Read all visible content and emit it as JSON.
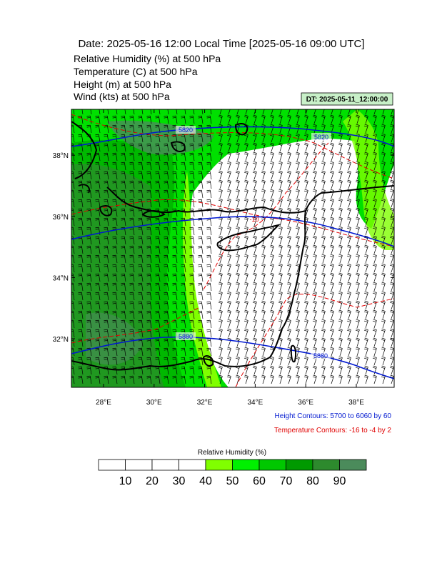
{
  "header": {
    "title": "Date: 2025-05-16  12:00 Local Time [2025-05-16  09:00 UTC]",
    "lines": [
      "Relative Humidity   (%)     at   500 hPa",
      "Temperature   (C)     at   500 hPa",
      "Height   (m)     at   500 hPa",
      "Wind   (kts)     at   500 hPa"
    ],
    "dt": "DT: 2025-05-11_12:00:00"
  },
  "map": {
    "lat_ticks": [
      {
        "value": 32,
        "label": "32°N"
      },
      {
        "value": 34,
        "label": "34°N"
      },
      {
        "value": 36,
        "label": "36°N"
      },
      {
        "value": 38,
        "label": "38°N"
      }
    ],
    "lon_ticks": [
      {
        "value": 28,
        "label": "28°E"
      },
      {
        "value": 30,
        "label": "30°E"
      },
      {
        "value": 32,
        "label": "32°E"
      },
      {
        "value": 34,
        "label": "34°E"
      },
      {
        "value": 36,
        "label": "36°E"
      },
      {
        "value": 38,
        "label": "38°E"
      }
    ],
    "contour_labels": [
      "5820",
      "5820",
      "5880",
      "5880",
      "-10"
    ]
  },
  "legend": {
    "height": "Height Contours: 5700 to 6060 by 60",
    "temperature": "Temperature Contours: -16 to -4 by 2"
  },
  "colorbar": {
    "title": "Relative Humidity  (%)",
    "labels": [
      "10",
      "20",
      "30",
      "40",
      "50",
      "60",
      "70",
      "80",
      "90"
    ]
  }
}
